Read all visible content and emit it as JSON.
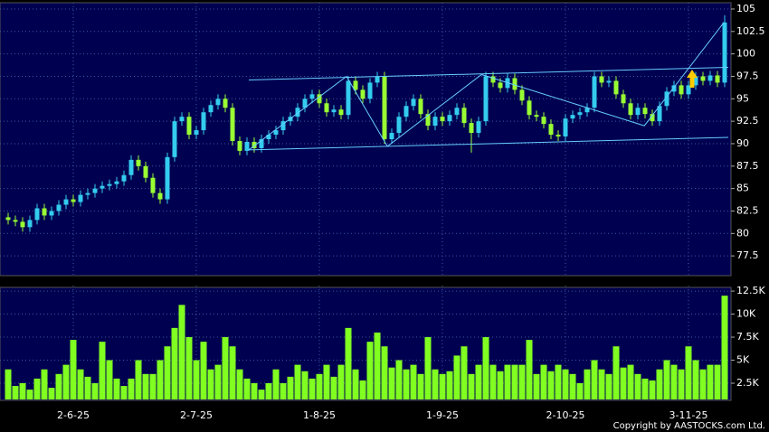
{
  "chart_data": [
    {
      "type": "candlestick",
      "open": [
        81.8,
        81.5,
        81.3,
        80.7,
        81.5,
        82.8,
        82,
        82.5,
        83.2,
        83.8,
        83.5,
        84.3,
        84.5,
        85,
        85.3,
        85.5,
        85.8,
        86.5,
        88.2,
        87.5,
        86.2,
        84.5,
        83.8,
        88.5,
        92.5,
        93,
        91,
        91.5,
        93.5,
        94.3,
        95,
        94,
        90.3,
        89.2,
        90.2,
        89.5,
        90.5,
        91,
        91.5,
        92.5,
        93,
        94,
        95,
        95.5,
        94.5,
        93.5,
        93.8,
        93.2,
        97,
        96,
        95,
        96.8,
        97.5,
        90.5,
        91.2,
        93,
        94.2,
        95,
        93.3,
        92,
        93,
        92.5,
        93.2,
        94,
        92.3,
        91.2,
        92.5,
        97.5,
        96.8,
        96.2,
        97.3,
        96,
        94.8,
        93.2,
        93,
        92.2,
        91,
        90.8,
        92.8,
        93.2,
        93.5,
        94,
        97.5,
        96.8,
        97,
        95.5,
        94.5,
        93.2,
        94,
        93.3,
        92.5,
        94.2,
        95.8,
        96.5,
        95.5,
        96.5,
        97.5,
        97,
        97.6,
        96.8
      ],
      "high": [
        82.3,
        82,
        81.8,
        82,
        83.3,
        83.3,
        83,
        83.7,
        84.3,
        84.3,
        84.8,
        85,
        85.5,
        85.8,
        86,
        86.3,
        87,
        88.7,
        88.7,
        88,
        86.7,
        85,
        89,
        93,
        93.5,
        93.5,
        92,
        94,
        94.8,
        95.5,
        95.5,
        94.5,
        90.8,
        90.7,
        90.7,
        91,
        91.5,
        92,
        93,
        93.5,
        94.5,
        95.5,
        96,
        96,
        95,
        94.3,
        94.3,
        97.5,
        97.5,
        96.5,
        97.3,
        98,
        98,
        91.7,
        93.5,
        94.7,
        95.5,
        95.5,
        93.8,
        93.5,
        93.5,
        93.7,
        94.5,
        94.5,
        92.8,
        93,
        98,
        98,
        97.3,
        97.8,
        97.8,
        96.5,
        95.3,
        93.7,
        93.5,
        92.7,
        91.5,
        93.3,
        93.7,
        94,
        94.5,
        98,
        98,
        97.5,
        97.5,
        96,
        95,
        94.5,
        94.5,
        93.8,
        94.7,
        96.3,
        97,
        97,
        97,
        98,
        98,
        98.1,
        98.1,
        104.3
      ],
      "low": [
        81,
        80.8,
        80.2,
        80.2,
        81,
        81.5,
        81.5,
        82,
        82.7,
        83,
        83,
        83.8,
        84,
        84.5,
        84.8,
        85,
        85.3,
        86,
        87,
        85.7,
        84,
        83.3,
        83.3,
        88,
        92,
        90.5,
        90.5,
        91,
        93,
        93.8,
        93.5,
        89.8,
        88.7,
        88.7,
        89,
        89,
        90,
        90.5,
        91,
        92,
        92.5,
        93.5,
        94.5,
        94,
        93,
        93,
        92.7,
        92.7,
        95.5,
        94.5,
        94.5,
        96.3,
        90,
        90,
        90.7,
        92.5,
        93.7,
        92.8,
        91.5,
        91.5,
        92,
        92,
        92.7,
        91.8,
        89,
        90.7,
        92,
        96.3,
        95.7,
        95.7,
        95.5,
        94.3,
        92.7,
        92.5,
        91.7,
        90.5,
        90.3,
        90.3,
        92.3,
        92.7,
        93,
        93.5,
        96.3,
        96.3,
        95,
        94,
        92.7,
        92.7,
        92.8,
        92,
        92,
        93.7,
        95.3,
        95,
        95,
        96,
        96.5,
        96.5,
        96.3,
        96.3
      ],
      "close": [
        81.5,
        81.3,
        80.7,
        81.5,
        82.8,
        82,
        82.5,
        83.2,
        83.8,
        83.5,
        84.3,
        84.5,
        85,
        85.3,
        85.5,
        85.8,
        86.5,
        88.2,
        87.5,
        86.2,
        84.5,
        83.8,
        88.5,
        92.5,
        93,
        91,
        91.5,
        93.5,
        94.3,
        95,
        94,
        90.3,
        89.2,
        90.2,
        89.5,
        90.5,
        91,
        91.5,
        92.5,
        93,
        94,
        95,
        95.5,
        94.5,
        93.5,
        93.8,
        93.2,
        97,
        96,
        95,
        96.8,
        97.5,
        90.5,
        91.2,
        93,
        94.2,
        95,
        93.3,
        92,
        93,
        92.5,
        93.2,
        94,
        92.3,
        91.2,
        92.5,
        97.5,
        96.8,
        96.2,
        97.3,
        96,
        94.8,
        93.2,
        93,
        92.2,
        91,
        90.8,
        92.8,
        93.2,
        93.5,
        94,
        97.5,
        96.8,
        97,
        95.5,
        94.5,
        93.2,
        94,
        93.3,
        92.5,
        94.2,
        95.8,
        96.5,
        95.5,
        96.5,
        97.5,
        97,
        97.6,
        96.8,
        103.5
      ],
      "up_color": "#33ccee",
      "down_color": "#99ff33",
      "ylim": [
        75.3,
        105.5
      ],
      "yticks": [
        77.5,
        80,
        82.5,
        85,
        87.5,
        90,
        92.5,
        95,
        97.5,
        100,
        102.5,
        105
      ],
      "grid": true,
      "trendlines": [
        {
          "x": [
            33.25,
            99.5
          ],
          "y": [
            97.1,
            98.5
          ]
        },
        {
          "x": [
            33.25,
            99.5
          ],
          "y": [
            89.3,
            90.7
          ]
        },
        {
          "x": [
            33.25,
            46.75,
            52.4,
            65.4,
            87.9,
            98.9
          ],
          "y": [
            89.3,
            97.5,
            89.7,
            97.7,
            92,
            103.5
          ]
        }
      ],
      "trendline_color": "#66ccff"
    },
    {
      "type": "bar",
      "categories": [
        null,
        null,
        null,
        null,
        null,
        null,
        null,
        null,
        null,
        "2-6-25",
        null,
        null,
        null,
        null,
        null,
        null,
        null,
        null,
        null,
        null,
        null,
        null,
        null,
        null,
        null,
        null,
        "2-7-25",
        null,
        null,
        null,
        null,
        null,
        null,
        null,
        null,
        null,
        null,
        null,
        null,
        null,
        null,
        null,
        null,
        "1-8-25",
        null,
        null,
        null,
        null,
        null,
        null,
        null,
        null,
        null,
        null,
        null,
        null,
        null,
        null,
        null,
        null,
        "1-9-25",
        null,
        null,
        null,
        null,
        null,
        null,
        null,
        null,
        null,
        null,
        null,
        null,
        null,
        null,
        null,
        null,
        "2-10-25",
        null,
        null,
        null,
        null,
        null,
        null,
        null,
        null,
        null,
        null,
        null,
        null,
        null,
        null,
        null,
        null,
        "3-11-25",
        null,
        null,
        null,
        null,
        null
      ],
      "values": [
        4000,
        2200,
        2500,
        1800,
        3000,
        4000,
        2000,
        3500,
        4500,
        7200,
        4000,
        3200,
        2500,
        7000,
        5000,
        3000,
        2200,
        3000,
        5000,
        3500,
        3500,
        5000,
        6500,
        8500,
        11000,
        7500,
        5000,
        7000,
        4000,
        4500,
        7500,
        6500,
        4000,
        3000,
        2500,
        1800,
        2500,
        4000,
        2500,
        3200,
        4500,
        3800,
        3000,
        3500,
        4500,
        3200,
        4500,
        8500,
        4000,
        2800,
        7000,
        8000,
        6500,
        4200,
        5000,
        4000,
        4500,
        3500,
        7500,
        4000,
        3500,
        3800,
        5500,
        6500,
        3500,
        4500,
        7500,
        4500,
        3800,
        4500,
        4500,
        4500,
        7200,
        3500,
        4500,
        3800,
        4500,
        4000,
        3500,
        2500,
        4000,
        5000,
        4000,
        3500,
        6500,
        4200,
        4500,
        3500,
        3000,
        2800,
        4000,
        5000,
        4500,
        4000,
        6500,
        5000,
        4000,
        4500,
        4500,
        12000
      ],
      "color": "#80ff20",
      "ylim": [
        735,
        12900
      ],
      "yticks": [
        {
          "value": 2500,
          "label": "2.5K"
        },
        {
          "value": 5000,
          "label": "5K"
        },
        {
          "value": 7500,
          "label": "7.5K"
        },
        {
          "value": 10000,
          "label": "10K"
        },
        {
          "value": 12500,
          "label": "12.5K"
        }
      ],
      "grid": true
    }
  ],
  "copyright": "Copyright by AASTOCKS.com Ltd."
}
